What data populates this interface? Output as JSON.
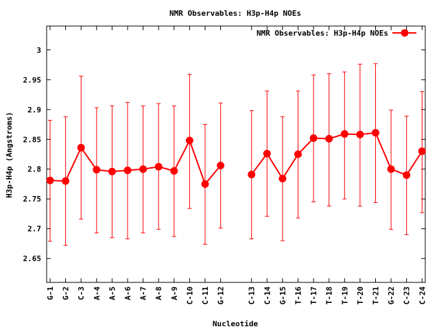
{
  "chart_data": {
    "type": "line",
    "title": "NMR Observables: H3p-H4p NOEs",
    "xlabel": "Nucleotide",
    "ylabel": "H3p-H4p (Angstroms)",
    "ylim": [
      2.61,
      3.04
    ],
    "yticks": [
      2.65,
      2.7,
      2.75,
      2.8,
      2.85,
      2.9,
      2.95,
      3
    ],
    "ytick_labels": [
      "2.65",
      "2.7",
      "2.75",
      "2.8",
      "2.85",
      "2.9",
      "2.95",
      "3"
    ],
    "grid": false,
    "legend_position": "top-right",
    "categories": [
      "G-1",
      "G-2",
      "C-3",
      "A-4",
      "A-5",
      "A-6",
      "A-7",
      "A-8",
      "A-9",
      "C-10",
      "C-11",
      "G-12",
      "C-13",
      "C-14",
      "G-15",
      "T-16",
      "T-17",
      "T-18",
      "T-19",
      "T-20",
      "T-21",
      "G-22",
      "C-23",
      "C-24"
    ],
    "series": [
      {
        "name": "NMR Observables: H3p-H4p NOEs",
        "color": "#ff0000",
        "values": [
          2.781,
          2.78,
          2.836,
          2.799,
          2.796,
          2.798,
          2.8,
          2.804,
          2.797,
          2.848,
          2.775,
          2.806,
          2.791,
          2.826,
          2.784,
          2.825,
          2.852,
          2.851,
          2.859,
          2.858,
          2.861,
          2.8,
          2.79,
          2.83
        ],
        "error_low": [
          2.679,
          2.672,
          2.716,
          2.693,
          2.685,
          2.683,
          2.693,
          2.699,
          2.687,
          2.734,
          2.674,
          2.701,
          2.683,
          2.721,
          2.68,
          2.718,
          2.745,
          2.738,
          2.75,
          2.738,
          2.744,
          2.699,
          2.69,
          2.727
        ],
        "error_high": [
          2.882,
          2.888,
          2.956,
          2.903,
          2.906,
          2.912,
          2.906,
          2.91,
          2.906,
          2.959,
          2.875,
          2.911,
          2.898,
          2.931,
          2.888,
          2.931,
          2.958,
          2.96,
          2.963,
          2.976,
          2.977,
          2.899,
          2.889,
          2.93
        ]
      }
    ]
  }
}
